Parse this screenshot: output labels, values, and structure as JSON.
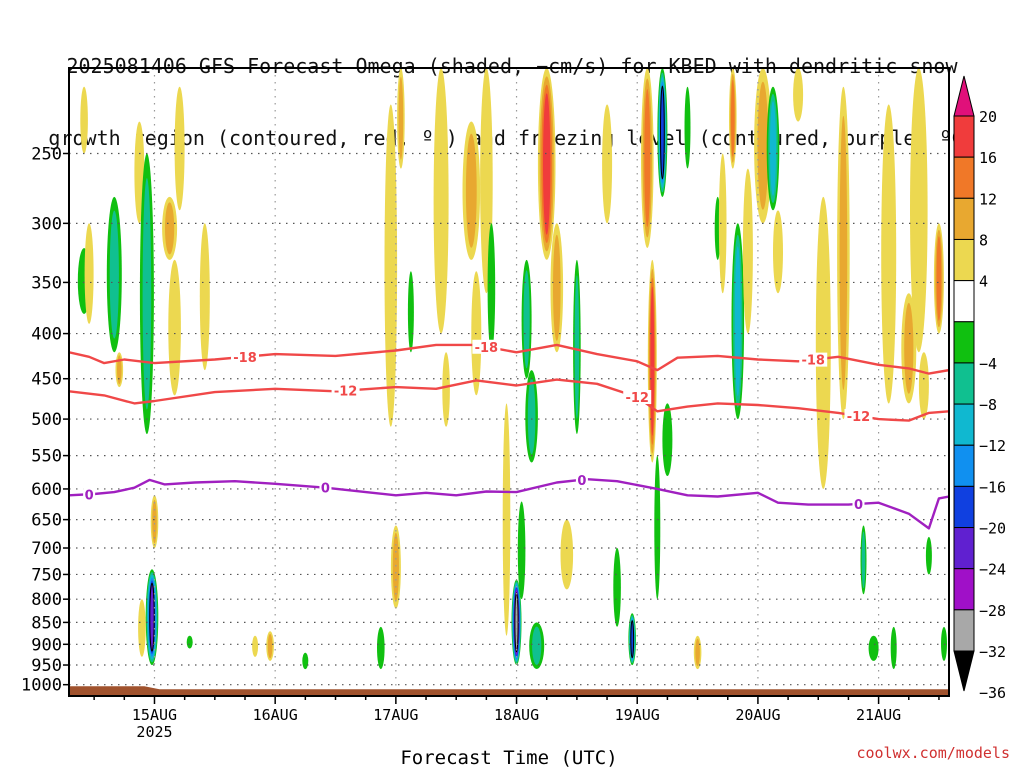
{
  "title_lines": [
    "2025081406 GFS Forecast Omega (shaded, −cm/s) for KBED with dendritic snow",
    "growth region (contoured, red, ºC) and freezing level (contoured, purple, ºC)"
  ],
  "credit": "coolwx.com/models",
  "chart_data": {
    "type": "heatmap",
    "xlabel": "Forecast Time (UTC)",
    "ylabel": "",
    "x_range_hours": [
      -17,
      158
    ],
    "x_ticks": [
      {
        "hour": 0,
        "label": "15AUG",
        "sublabel": "2025"
      },
      {
        "hour": 24,
        "label": "16AUG",
        "sublabel": ""
      },
      {
        "hour": 48,
        "label": "17AUG",
        "sublabel": ""
      },
      {
        "hour": 72,
        "label": "18AUG",
        "sublabel": ""
      },
      {
        "hour": 96,
        "label": "19AUG",
        "sublabel": ""
      },
      {
        "hour": 120,
        "label": "20AUG",
        "sublabel": ""
      },
      {
        "hour": 144,
        "label": "21AUG",
        "sublabel": ""
      }
    ],
    "y_scale": "log-pressure",
    "y_range_hpa": [
      1030,
      200
    ],
    "y_ticks": [
      250,
      300,
      350,
      400,
      450,
      500,
      550,
      600,
      650,
      700,
      750,
      800,
      850,
      900,
      950,
      1000
    ],
    "grid": true,
    "colorbar": {
      "label_values": [
        20,
        16,
        12,
        8,
        4,
        -4,
        -8,
        -12,
        -16,
        -20,
        -24,
        -28,
        -32,
        -36
      ],
      "bins": [
        {
          "from": 16,
          "to": 20,
          "color": "#f03c3c"
        },
        {
          "from": 12,
          "to": 16,
          "color": "#f07828"
        },
        {
          "from": 8,
          "to": 12,
          "color": "#e8a830"
        },
        {
          "from": 4,
          "to": 8,
          "color": "#ecd850"
        },
        {
          "from": -4,
          "to": 4,
          "color": "#ffffff"
        },
        {
          "from": -8,
          "to": -4,
          "color": "#10c010"
        },
        {
          "from": -12,
          "to": -8,
          "color": "#10c090"
        },
        {
          "from": -16,
          "to": -12,
          "color": "#10b8d0"
        },
        {
          "from": -20,
          "to": -16,
          "color": "#1090f0"
        },
        {
          "from": -24,
          "to": -20,
          "color": "#1040e0"
        },
        {
          "from": -28,
          "to": -24,
          "color": "#6020d0"
        },
        {
          "from": -32,
          "to": -28,
          "color": "#a010c8"
        },
        {
          "from": -36,
          "to": -32,
          "color": "#a8a8a8"
        }
      ],
      "top_arrow_color": "#e0107a",
      "bottom_arrow_color": "#000000"
    },
    "contours": [
      {
        "label": "-18",
        "color": "#f04848",
        "points": [
          [
            -17,
            420
          ],
          [
            -13,
            425
          ],
          [
            -10,
            432
          ],
          [
            -6,
            428
          ],
          [
            0,
            432
          ],
          [
            12,
            428
          ],
          [
            24,
            422
          ],
          [
            36,
            424
          ],
          [
            48,
            418
          ],
          [
            56,
            412
          ],
          [
            64,
            412
          ],
          [
            72,
            420
          ],
          [
            80,
            412
          ],
          [
            88,
            422
          ],
          [
            96,
            430
          ],
          [
            100,
            440
          ],
          [
            104,
            426
          ],
          [
            112,
            424
          ],
          [
            120,
            428
          ],
          [
            128,
            430
          ],
          [
            136,
            425
          ],
          [
            144,
            434
          ],
          [
            150,
            438
          ],
          [
            154,
            444
          ],
          [
            158,
            440
          ]
        ],
        "label_positions": [
          18,
          66,
          131
        ]
      },
      {
        "label": "-12",
        "color": "#f04848",
        "points": [
          [
            -17,
            465
          ],
          [
            -10,
            470
          ],
          [
            -4,
            480
          ],
          [
            0,
            477
          ],
          [
            12,
            466
          ],
          [
            24,
            462
          ],
          [
            36,
            465
          ],
          [
            48,
            460
          ],
          [
            56,
            462
          ],
          [
            64,
            452
          ],
          [
            72,
            458
          ],
          [
            80,
            451
          ],
          [
            88,
            456
          ],
          [
            96,
            472
          ],
          [
            100,
            490
          ],
          [
            106,
            484
          ],
          [
            112,
            480
          ],
          [
            120,
            482
          ],
          [
            128,
            486
          ],
          [
            136,
            492
          ],
          [
            144,
            500
          ],
          [
            150,
            502
          ],
          [
            154,
            492
          ],
          [
            158,
            490
          ]
        ],
        "label_positions": [
          38,
          96,
          140
        ]
      },
      {
        "label": "0",
        "color": "#a020c0",
        "points": [
          [
            -17,
            610
          ],
          [
            -12,
            608
          ],
          [
            -8,
            605
          ],
          [
            -4,
            598
          ],
          [
            -1,
            586
          ],
          [
            2,
            593
          ],
          [
            8,
            590
          ],
          [
            16,
            588
          ],
          [
            24,
            592
          ],
          [
            34,
            598
          ],
          [
            42,
            605
          ],
          [
            48,
            610
          ],
          [
            54,
            606
          ],
          [
            60,
            610
          ],
          [
            66,
            604
          ],
          [
            72,
            605
          ],
          [
            80,
            590
          ],
          [
            86,
            585
          ],
          [
            92,
            588
          ],
          [
            100,
            600
          ],
          [
            106,
            610
          ],
          [
            112,
            612
          ],
          [
            120,
            606
          ],
          [
            124,
            622
          ],
          [
            130,
            625
          ],
          [
            138,
            625
          ],
          [
            144,
            622
          ],
          [
            150,
            640
          ],
          [
            154,
            665
          ],
          [
            156,
            615
          ],
          [
            158,
            612
          ]
        ],
        "label_positions": [
          -13,
          34,
          85,
          140
        ]
      }
    ],
    "terrain": {
      "level_hpa": 1012,
      "color": "#a0522d"
    }
  }
}
